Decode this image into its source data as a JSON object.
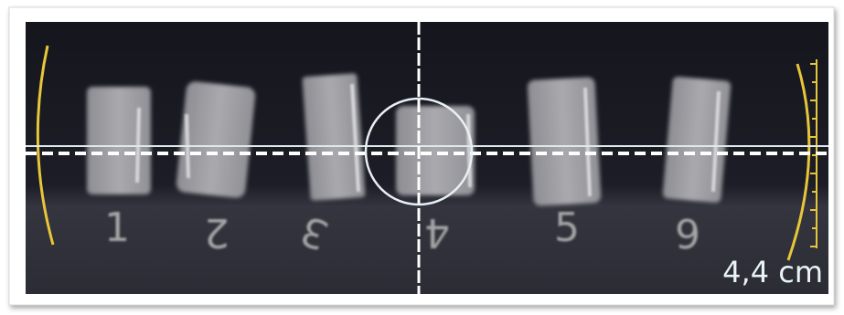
{
  "image": {
    "sample_labels": [
      "1",
      "2",
      "3",
      "4",
      "5",
      "6"
    ],
    "scale_label": "4,4 cm"
  }
}
